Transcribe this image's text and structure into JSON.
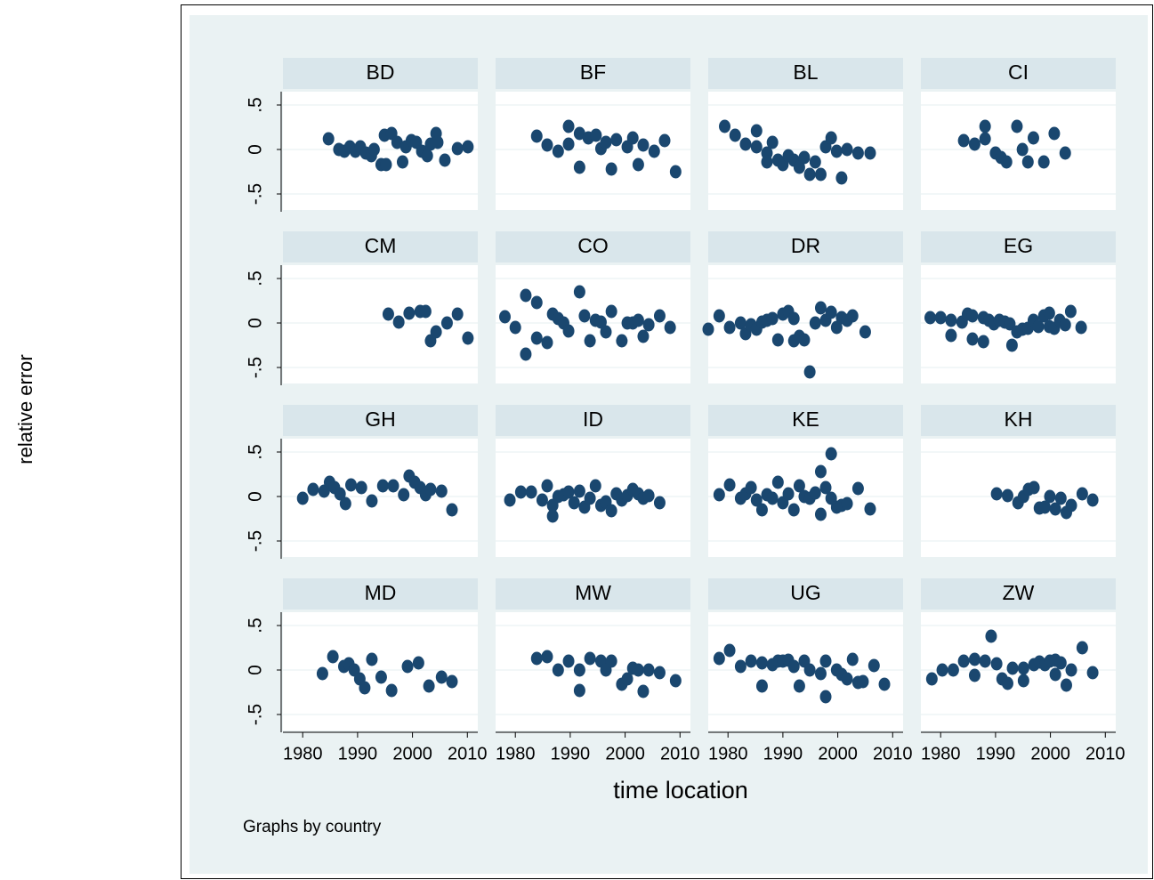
{
  "y_label": "relative error",
  "x_label": "time location",
  "note": "Graphs by country",
  "chart_data": [
    {
      "type": "scatter",
      "title": "BD",
      "color": "#1a476f",
      "xlim": [
        1976.4,
        2011.9
      ],
      "ylim": [
        -0.68,
        0.65
      ],
      "yticks": [
        {
          "value": 0.5,
          "label": ".5"
        },
        0,
        {
          "value": -0.5,
          "label": "-.5"
        }
      ],
      "x": [
        1984.7,
        1986.6,
        1987.6,
        1988.6,
        1989.6,
        1990.5,
        1991.5,
        1992.5,
        1993,
        1994.3,
        1994.9,
        1995.2,
        1996.2,
        1997.2,
        1998.2,
        1998.8,
        1999.8,
        2000.7,
        2001.7,
        2002.7,
        2003.3,
        2004.3,
        2004.6,
        2005.9,
        2008.2,
        2010.1
      ],
      "values": [
        0.12,
        0,
        -0.02,
        0.03,
        -0.02,
        0.03,
        -0.04,
        -0.07,
        0,
        -0.17,
        0.16,
        -0.17,
        0.18,
        0.08,
        -0.14,
        0.03,
        0.1,
        0.08,
        -0.02,
        -0.07,
        0.06,
        0.18,
        0.08,
        -0.12,
        0.01,
        0.03
      ]
    },
    {
      "type": "scatter",
      "title": "BF",
      "color": "#1a476f",
      "xlim": [
        1976.4,
        2011.9
      ],
      "ylim": [
        -0.68,
        0.65
      ],
      "yticks": [
        0.5,
        0,
        -0.5
      ],
      "x": [
        1983.9,
        1985.8,
        1987.8,
        1989.7,
        1989.7,
        1991.7,
        1991.7,
        1993.3,
        1994.7,
        1995.6,
        1996.5,
        1997.5,
        1998.4,
        2000.4,
        2001.4,
        2002.4,
        2003.3,
        2005.3,
        2007.2,
        2009.2
      ],
      "values": [
        0.15,
        0.05,
        -0.02,
        0.06,
        0.26,
        -0.2,
        0.18,
        0.13,
        0.16,
        0.01,
        0.08,
        -0.22,
        0.11,
        0.03,
        0.13,
        -0.17,
        0.05,
        -0.02,
        0.1,
        -0.25
      ]
    },
    {
      "type": "scatter",
      "title": "BL",
      "color": "#1a476f",
      "xlim": [
        1976.4,
        2011.9
      ],
      "ylim": [
        -0.68,
        0.65
      ],
      "yticks": [
        0.5,
        0,
        -0.5
      ],
      "x": [
        1979.4,
        1981.3,
        1983.2,
        1985.2,
        1985.2,
        1987.1,
        1987.1,
        1988.1,
        1989.1,
        1990,
        1991,
        1992,
        1993,
        1993.9,
        1994.9,
        1995.9,
        1996.9,
        1997.8,
        1998.8,
        1999.8,
        2000.7,
        2001.7,
        2003.7,
        2005.9
      ],
      "values": [
        0.26,
        0.16,
        0.06,
        0.21,
        0.03,
        -0.04,
        -0.14,
        0.08,
        -0.12,
        -0.17,
        -0.07,
        -0.12,
        -0.2,
        -0.09,
        -0.28,
        -0.14,
        -0.28,
        0.03,
        0.13,
        -0.02,
        -0.32,
        0,
        -0.04,
        -0.04
      ]
    },
    {
      "type": "scatter",
      "title": "CI",
      "color": "#1a476f",
      "xlim": [
        1976.4,
        2011.9
      ],
      "ylim": [
        -0.68,
        0.65
      ],
      "yticks": [
        0.5,
        0,
        -0.5
      ],
      "x": [
        1984.2,
        1986.2,
        1988.1,
        1988.1,
        1990,
        1991,
        1992,
        1993.9,
        1994.9,
        1995.9,
        1996.9,
        1998.8,
        2000.7,
        2002.7
      ],
      "values": [
        0.1,
        0.06,
        0.26,
        0.12,
        -0.04,
        -0.09,
        -0.14,
        0.26,
        0,
        -0.14,
        0.13,
        -0.14,
        0.18,
        -0.04
      ]
    },
    {
      "type": "scatter",
      "title": "CM",
      "color": "#1a476f",
      "xlim": [
        1976.4,
        2011.9
      ],
      "ylim": [
        -0.68,
        0.65
      ],
      "yticks": [
        {
          "value": 0.5,
          "label": ".5"
        },
        0,
        {
          "value": -0.5,
          "label": "-.5"
        }
      ],
      "x": [
        1995.6,
        1997.5,
        1999.4,
        2001.4,
        2002.4,
        2003.3,
        2004.3,
        2006.3,
        2008.2,
        2010.1
      ],
      "values": [
        0.1,
        0.01,
        0.11,
        0.13,
        0.13,
        -0.2,
        -0.1,
        0,
        0.1,
        -0.17
      ]
    },
    {
      "type": "scatter",
      "title": "CO",
      "color": "#1a476f",
      "xlim": [
        1976.4,
        2011.9
      ],
      "ylim": [
        -0.68,
        0.65
      ],
      "yticks": [
        0.5,
        0,
        -0.5
      ],
      "x": [
        1978.1,
        1980,
        1981.9,
        1981.9,
        1983.9,
        1983.9,
        1985.8,
        1986.8,
        1987.8,
        1988.8,
        1989.7,
        1991.7,
        1992.6,
        1993.6,
        1994.6,
        1995.6,
        1996.5,
        1997.5,
        1999.4,
        2000.4,
        2001.4,
        2002.4,
        2003.3,
        2004.3,
        2006.3,
        2008.2
      ],
      "values": [
        0.07,
        -0.05,
        0.31,
        -0.35,
        0.23,
        -0.17,
        -0.22,
        0.1,
        0.05,
        0,
        -0.09,
        0.35,
        0.08,
        -0.2,
        0.03,
        0.01,
        -0.1,
        0.13,
        -0.2,
        0,
        0,
        0.03,
        -0.15,
        -0.02,
        0.08,
        -0.05
      ]
    },
    {
      "type": "scatter",
      "title": "DR",
      "color": "#1a476f",
      "xlim": [
        1976.4,
        2011.9
      ],
      "ylim": [
        -0.68,
        0.65
      ],
      "yticks": [
        0.5,
        0,
        -0.5
      ],
      "x": [
        1976.4,
        1978.4,
        1980.3,
        1982.3,
        1983.2,
        1984.2,
        1985.2,
        1986.2,
        1987.1,
        1988.1,
        1989.1,
        1990,
        1991,
        1992,
        1992,
        1993,
        1993.9,
        1994.9,
        1995.9,
        1996.9,
        1997.8,
        1998.8,
        1999.8,
        2000.7,
        2001.7,
        2002.7,
        2005
      ],
      "values": [
        -0.07,
        0.08,
        -0.05,
        0,
        -0.12,
        -0.02,
        -0.07,
        0.01,
        0.03,
        0.05,
        -0.19,
        0.1,
        0.13,
        0.05,
        -0.2,
        -0.15,
        -0.19,
        -0.55,
        0,
        0.17,
        0.03,
        0.12,
        -0.05,
        0.06,
        0.03,
        0.08,
        -0.1
      ]
    },
    {
      "type": "scatter",
      "title": "EG",
      "color": "#1a476f",
      "xlim": [
        1976.4,
        2011.9
      ],
      "ylim": [
        -0.68,
        0.65
      ],
      "yticks": [
        0.5,
        0,
        -0.5
      ],
      "x": [
        1978.1,
        1980,
        1981.9,
        1981.9,
        1983.9,
        1984.9,
        1985.8,
        1985.8,
        1987.8,
        1987.8,
        1988.8,
        1989.7,
        1990.7,
        1991.7,
        1992.6,
        1993,
        1993.9,
        1994.9,
        1995.9,
        1996.9,
        1997.8,
        1998.8,
        1999.8,
        1999.8,
        2000.7,
        2001.7,
        2002.7,
        2003.7,
        2005.6
      ],
      "values": [
        0.06,
        0.06,
        0.03,
        -0.14,
        0.01,
        0.1,
        0.08,
        -0.18,
        0.06,
        -0.21,
        0.03,
        -0.01,
        0.03,
        0.01,
        -0.01,
        -0.25,
        -0.1,
        -0.07,
        -0.06,
        0.03,
        -0.04,
        0.08,
        -0.04,
        0.11,
        -0.06,
        0.03,
        -0.02,
        0.13,
        -0.05
      ]
    },
    {
      "type": "scatter",
      "title": "GH",
      "color": "#1a476f",
      "xlim": [
        1976.4,
        2011.9
      ],
      "ylim": [
        -0.68,
        0.65
      ],
      "yticks": [
        {
          "value": 0.5,
          "label": ".5"
        },
        0,
        {
          "value": -0.5,
          "label": "-.5"
        }
      ],
      "x": [
        1980,
        1981.9,
        1983.9,
        1984.9,
        1985.8,
        1986.8,
        1987.8,
        1988.8,
        1990.7,
        1992.6,
        1994.6,
        1996.5,
        1998.4,
        1999.4,
        2000.4,
        2001.4,
        2002.4,
        2003.3,
        2005.3,
        2007.2
      ],
      "values": [
        -0.02,
        0.08,
        0.06,
        0.16,
        0.1,
        0.03,
        -0.08,
        0.13,
        0.1,
        -0.05,
        0.12,
        0.12,
        0.02,
        0.23,
        0.16,
        0.1,
        0.02,
        0.08,
        0.06,
        -0.15
      ]
    },
    {
      "type": "scatter",
      "title": "ID",
      "color": "#1a476f",
      "xlim": [
        1976.4,
        2011.9
      ],
      "ylim": [
        -0.68,
        0.65
      ],
      "yticks": [
        0.5,
        0,
        -0.5
      ],
      "x": [
        1979,
        1981,
        1982.9,
        1984.9,
        1985.8,
        1986.8,
        1986.8,
        1987.8,
        1988.8,
        1989.7,
        1990.7,
        1991.7,
        1992.6,
        1993.6,
        1994.6,
        1995.6,
        1996.5,
        1997.5,
        1998.4,
        1999.4,
        2000.4,
        2001.4,
        2002.4,
        2003.3,
        2004.3,
        2006.3
      ],
      "values": [
        -0.04,
        0.05,
        0.05,
        -0.04,
        0.12,
        -0.1,
        -0.22,
        0,
        0.02,
        0.05,
        -0.07,
        0.06,
        -0.12,
        -0.02,
        0.12,
        -0.1,
        -0.06,
        -0.16,
        0.03,
        -0.04,
        0.01,
        0.08,
        0.03,
        -0.02,
        0.01,
        -0.07
      ]
    },
    {
      "type": "scatter",
      "title": "KE",
      "color": "#1a476f",
      "xlim": [
        1976.4,
        2011.9
      ],
      "ylim": [
        -0.68,
        0.65
      ],
      "yticks": [
        0.5,
        0,
        -0.5
      ],
      "x": [
        1978.4,
        1980.3,
        1982.3,
        1983.2,
        1984.2,
        1985.2,
        1986.2,
        1987.1,
        1988.1,
        1989.1,
        1990,
        1991,
        1992,
        1993,
        1993.9,
        1994.9,
        1995.9,
        1996.9,
        1996.9,
        1997.8,
        1998.8,
        1998.8,
        1999.8,
        2000.7,
        2001.7,
        2003.7,
        2005.9
      ],
      "values": [
        0.02,
        0.13,
        -0.02,
        0.03,
        0.1,
        -0.04,
        -0.15,
        0.02,
        -0.02,
        0.16,
        -0.07,
        0.03,
        -0.15,
        0.12,
        0,
        -0.02,
        0.04,
        -0.2,
        0.28,
        0.1,
        0.48,
        -0.02,
        -0.12,
        -0.1,
        -0.08,
        0.09,
        -0.14
      ]
    },
    {
      "type": "scatter",
      "title": "KH",
      "color": "#1a476f",
      "xlim": [
        1976.4,
        2011.9
      ],
      "ylim": [
        -0.68,
        0.65
      ],
      "yticks": [
        0.5,
        0,
        -0.5
      ],
      "x": [
        1990.2,
        1992.2,
        1994.1,
        1995.1,
        1996,
        1997,
        1998,
        1999,
        1999.9,
        2000.9,
        2001.9,
        2002.9,
        2003.8,
        2005.8,
        2007.7
      ],
      "values": [
        0.03,
        0.01,
        -0.07,
        0,
        0.08,
        0.1,
        -0.13,
        -0.12,
        0,
        -0.14,
        -0.02,
        -0.18,
        -0.1,
        0.03,
        -0.04
      ]
    },
    {
      "type": "scatter",
      "title": "MD",
      "color": "#1a476f",
      "xlim": [
        1976.4,
        2011.9
      ],
      "ylim": [
        -0.68,
        0.65
      ],
      "yticks": [
        {
          "value": 0.5,
          "label": ".5"
        },
        0,
        {
          "value": -0.5,
          "label": "-.5"
        }
      ],
      "xticks": [
        1980,
        1990,
        2000,
        2010
      ],
      "x": [
        1983.6,
        1985.5,
        1987.5,
        1988.4,
        1989.4,
        1990.4,
        1991.3,
        1992.6,
        1994.3,
        1996.2,
        1999.1,
        2001.1,
        2003,
        2005.3,
        2007.2
      ],
      "values": [
        -0.04,
        0.15,
        0.04,
        0.07,
        0,
        -0.1,
        -0.2,
        0.12,
        -0.08,
        -0.23,
        0.04,
        0.08,
        -0.18,
        -0.08,
        -0.13
      ]
    },
    {
      "type": "scatter",
      "title": "MW",
      "color": "#1a476f",
      "xlim": [
        1976.4,
        2011.9
      ],
      "ylim": [
        -0.68,
        0.65
      ],
      "yticks": [
        0.5,
        0,
        -0.5
      ],
      "xticks": [
        1980,
        1990,
        2000,
        2010
      ],
      "x": [
        1983.9,
        1985.8,
        1987.8,
        1989.7,
        1991.7,
        1991.7,
        1993.6,
        1995.6,
        1996.5,
        1997.5,
        1999.4,
        2000.4,
        2001.4,
        2002.4,
        2003.3,
        2004.3,
        2006.3,
        2009.2
      ],
      "values": [
        0.13,
        0.15,
        0,
        0.1,
        -0.23,
        0,
        0.13,
        0.1,
        0,
        0.1,
        -0.16,
        -0.1,
        0.02,
        0,
        -0.24,
        0,
        -0.03,
        -0.12
      ]
    },
    {
      "type": "scatter",
      "title": "UG",
      "color": "#1a476f",
      "xlim": [
        1976.4,
        2011.9
      ],
      "ylim": [
        -0.68,
        0.65
      ],
      "yticks": [
        0.5,
        0,
        -0.5
      ],
      "xticks": [
        1980,
        1990,
        2000,
        2010
      ],
      "x": [
        1978.4,
        1980.3,
        1982.3,
        1984.2,
        1986.2,
        1986.2,
        1988.1,
        1989.1,
        1990,
        1991,
        1992,
        1993,
        1993.9,
        1994.9,
        1996.9,
        1997.8,
        1997.8,
        1999.8,
        2000.7,
        2001.7,
        2002.7,
        2003.7,
        2004.6,
        2006.6,
        2008.5
      ],
      "values": [
        0.13,
        0.22,
        0.04,
        0.1,
        0.08,
        -0.18,
        0.06,
        0.1,
        0.1,
        0.11,
        0.04,
        -0.18,
        0.1,
        0,
        -0.04,
        -0.3,
        0.1,
        0,
        -0.05,
        -0.1,
        0.12,
        -0.14,
        -0.13,
        0.05,
        -0.16
      ]
    },
    {
      "type": "scatter",
      "title": "ZW",
      "color": "#1a476f",
      "xlim": [
        1976.4,
        2011.9
      ],
      "ylim": [
        -0.68,
        0.65
      ],
      "yticks": [
        0.5,
        0,
        -0.5
      ],
      "xticks": [
        1980,
        1990,
        2000,
        2010
      ],
      "x": [
        1978.4,
        1980.3,
        1982.3,
        1984.2,
        1986.2,
        1986.2,
        1988.1,
        1989.2,
        1990.2,
        1991.2,
        1992.2,
        1993.1,
        1995.1,
        1995.1,
        1997,
        1998,
        1999,
        1999.9,
        2000.9,
        2000.9,
        2001.9,
        2002.9,
        2003.8,
        2005.8,
        2007.7
      ],
      "values": [
        -0.1,
        0,
        0,
        0.1,
        0.12,
        -0.06,
        0.1,
        0.38,
        0.07,
        -0.1,
        -0.15,
        0.02,
        0.02,
        -0.12,
        0.06,
        0.09,
        0.06,
        0.1,
        0.11,
        -0.05,
        0.08,
        -0.17,
        0,
        0.25,
        -0.03
      ]
    }
  ]
}
